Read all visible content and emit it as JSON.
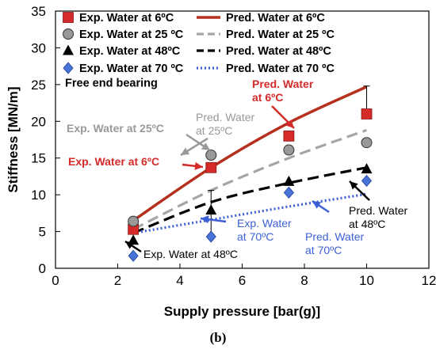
{
  "chart_data": {
    "type": "scatter+line",
    "xlabel": "Supply pressure [bar(g)]",
    "ylabel": "Stiffness [MN/m]",
    "xlim": [
      0,
      12
    ],
    "ylim": [
      0,
      35
    ],
    "xticks": [
      0,
      2,
      4,
      6,
      8,
      10,
      12
    ],
    "yticks": [
      0,
      5,
      10,
      15,
      20,
      25,
      30,
      35
    ],
    "grid": false,
    "legend_position": "top-left",
    "caption": "(b)",
    "inner_label": "Free end bearing",
    "experimental": [
      {
        "name": "Exp. Water at 6ºC",
        "marker": "square",
        "color": "#d42a2a",
        "x": [
          2.5,
          5,
          7.5,
          10
        ],
        "y": [
          5.3,
          13.7,
          18.0,
          21.0
        ],
        "err_low": [
          5.3,
          13.7,
          18.0,
          21.0
        ],
        "err_high": [
          5.3,
          13.7,
          18.0,
          24.8
        ]
      },
      {
        "name": "Exp. Water at 25 ºC",
        "marker": "circle",
        "color": "#999999",
        "x": [
          2.5,
          5,
          7.5,
          10
        ],
        "y": [
          6.4,
          15.4,
          16.1,
          17.1
        ]
      },
      {
        "name": "Exp. Water at 48ºC",
        "marker": "triangle",
        "color": "#000000",
        "x": [
          2.5,
          5,
          7.5,
          10
        ],
        "y": [
          3.8,
          7.9,
          11.8,
          13.5
        ],
        "err_low": [
          3.8,
          4.6,
          11.8,
          13.5
        ],
        "err_high": [
          3.8,
          10.6,
          11.8,
          13.5
        ]
      },
      {
        "name": "Exp. Water at 70 ºC",
        "marker": "diamond",
        "color": "#4a73d8",
        "x": [
          2.5,
          5,
          7.5,
          10
        ],
        "y": [
          1.7,
          4.3,
          10.3,
          11.9
        ]
      }
    ],
    "predicted": [
      {
        "name": "Pred. Water at 6ºC",
        "style": "solid",
        "color": "#b5301e",
        "x": [
          2.5,
          5,
          7.5,
          10
        ],
        "y": [
          6.5,
          13.7,
          19.8,
          24.7
        ]
      },
      {
        "name": "Pred. Water at 25 ºC",
        "style": "dashed",
        "color": "#a6a6a6",
        "x": [
          2.5,
          5,
          7.5,
          10
        ],
        "y": [
          5.3,
          10.6,
          15.0,
          18.8
        ]
      },
      {
        "name": "Pred. Water at 48ºC",
        "style": "dashed",
        "color": "#000000",
        "x": [
          2.5,
          5,
          7.5,
          10
        ],
        "y": [
          4.8,
          9.0,
          11.6,
          13.7
        ]
      },
      {
        "name": "Pred. Water at 70 ºC",
        "style": "dotted",
        "color": "#3c5fd6",
        "x": [
          2.5,
          5,
          7.5,
          10
        ],
        "y": [
          4.8,
          6.6,
          8.4,
          10.1
        ]
      }
    ],
    "annotations": [
      {
        "lines": [
          "Pred. Water",
          "at 6ºC"
        ],
        "color": "#d42a2a",
        "bold": true
      },
      {
        "lines": [
          "Pred. Water",
          "at 25ºC"
        ],
        "color": "#999999",
        "bold": false
      },
      {
        "lines": [
          "Exp. Water at 25ºC"
        ],
        "color": "#999999",
        "bold": true
      },
      {
        "lines": [
          "Exp. Water at 6ºC"
        ],
        "color": "#d42a2a",
        "bold": true
      },
      {
        "lines": [
          "Exp. Water",
          "at 70ºC"
        ],
        "color": "#3c5fd6",
        "bold": false
      },
      {
        "lines": [
          "Pred. Water",
          "at 70ºC"
        ],
        "color": "#3c5fd6",
        "bold": false
      },
      {
        "lines": [
          "Pred. Water",
          "at 48ºC"
        ],
        "color": "#000000",
        "bold": false
      },
      {
        "lines": [
          "Exp. Water at 48ºC"
        ],
        "color": "#000000",
        "bold": false
      }
    ]
  }
}
